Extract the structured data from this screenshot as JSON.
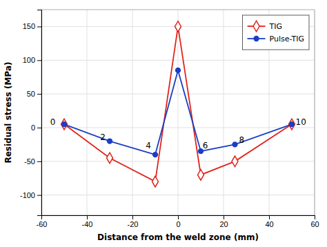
{
  "chart_data": {
    "type": "line",
    "xlabel": "Distance from the weld zone (mm)",
    "ylabel": "Residual stress (MPa)",
    "x": [
      -50,
      -30,
      -10,
      0,
      10,
      25,
      50
    ],
    "series": [
      {
        "name": "TIG",
        "color": "#e0241b",
        "marker": "diamond",
        "values": [
          5,
          -45,
          -80,
          150,
          -70,
          -50,
          5
        ]
      },
      {
        "name": "Pulse-TIG",
        "color": "#1a3fc4",
        "marker": "circle",
        "values": [
          5,
          -20,
          -40,
          85,
          -35,
          -25,
          5
        ]
      }
    ],
    "xlim": [
      -60,
      60
    ],
    "ylim": [
      -130,
      175
    ],
    "xticks": [
      -60,
      -40,
      -20,
      0,
      20,
      40,
      60
    ],
    "yticks": [
      -100,
      -50,
      0,
      50,
      100,
      150
    ],
    "grid": true,
    "legend": "upper right",
    "annotations": [
      {
        "text": "0",
        "x": -55,
        "y": 8
      },
      {
        "text": "2",
        "x": -33,
        "y": -14
      },
      {
        "text": "4",
        "x": -13,
        "y": -27
      },
      {
        "text": "6",
        "x": 12,
        "y": -27
      },
      {
        "text": "8",
        "x": 28,
        "y": -18
      },
      {
        "text": "10",
        "x": 54,
        "y": 8
      }
    ]
  }
}
